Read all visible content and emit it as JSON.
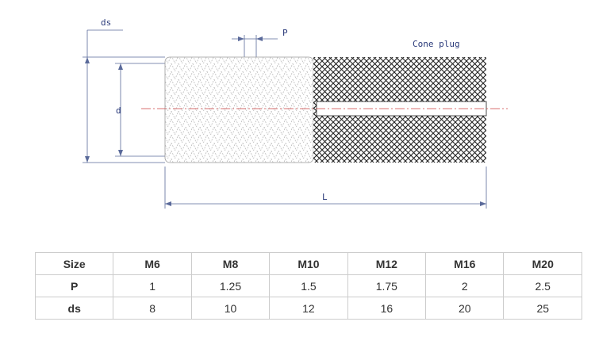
{
  "drawing": {
    "ds_label": "ds",
    "p_label": "P",
    "cone_plug_label": "Cone plug",
    "d_label": "d",
    "l_label": "L"
  },
  "table": {
    "rows": [
      [
        "Size",
        "M6",
        "M8",
        "M10",
        "M12",
        "M16",
        "M20"
      ],
      [
        "P",
        "1",
        "1.25",
        "1.5",
        "1.75",
        "2",
        "2.5"
      ],
      [
        "ds",
        "8",
        "10",
        "12",
        "16",
        "20",
        "25"
      ]
    ]
  }
}
